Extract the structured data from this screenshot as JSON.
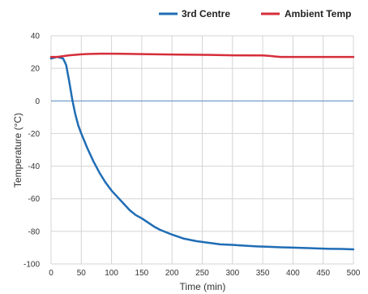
{
  "chart_data": {
    "type": "line",
    "title": "",
    "xlabel": "Time (min)",
    "ylabel": "Temperature (°C)",
    "xlim": [
      0,
      500
    ],
    "ylim": [
      -100,
      40
    ],
    "xticks": [
      0,
      50,
      100,
      150,
      200,
      250,
      300,
      350,
      400,
      450,
      500
    ],
    "yticks": [
      -100,
      -80,
      -60,
      -40,
      -20,
      0,
      20,
      40
    ],
    "grid": true,
    "legend_position": "top-right",
    "zero_line": true,
    "colors": {
      "zero_line": "#5b8fc7"
    },
    "series": [
      {
        "name": "3rd Centre",
        "color": "#1f6db5",
        "x": [
          0,
          10,
          20,
          25,
          30,
          35,
          40,
          45,
          50,
          60,
          70,
          80,
          90,
          100,
          110,
          120,
          130,
          140,
          150,
          160,
          170,
          180,
          190,
          200,
          220,
          240,
          260,
          280,
          300,
          320,
          340,
          360,
          380,
          400,
          420,
          440,
          460,
          480,
          500
        ],
        "y": [
          26,
          27,
          26,
          22,
          12,
          1,
          -8,
          -15,
          -20,
          -29,
          -37,
          -44,
          -50,
          -55,
          -59,
          -63,
          -67,
          -70,
          -72,
          -74.5,
          -77,
          -79,
          -80.5,
          -82,
          -84.5,
          -86,
          -87,
          -88,
          -88.3,
          -88.8,
          -89.2,
          -89.5,
          -89.8,
          -90,
          -90.2,
          -90.5,
          -90.7,
          -90.8,
          -91
        ]
      },
      {
        "name": "Ambient Temp",
        "color": "#d62d3a",
        "x": [
          0,
          10,
          20,
          30,
          40,
          50,
          60,
          80,
          100,
          120,
          150,
          200,
          250,
          300,
          350,
          360,
          370,
          380,
          400,
          450,
          500
        ],
        "y": [
          27,
          27,
          27.5,
          28,
          28.3,
          28.6,
          28.8,
          29,
          29,
          28.9,
          28.7,
          28.5,
          28.3,
          28,
          27.9,
          27.7,
          27.3,
          27,
          27,
          27,
          27
        ]
      }
    ]
  }
}
